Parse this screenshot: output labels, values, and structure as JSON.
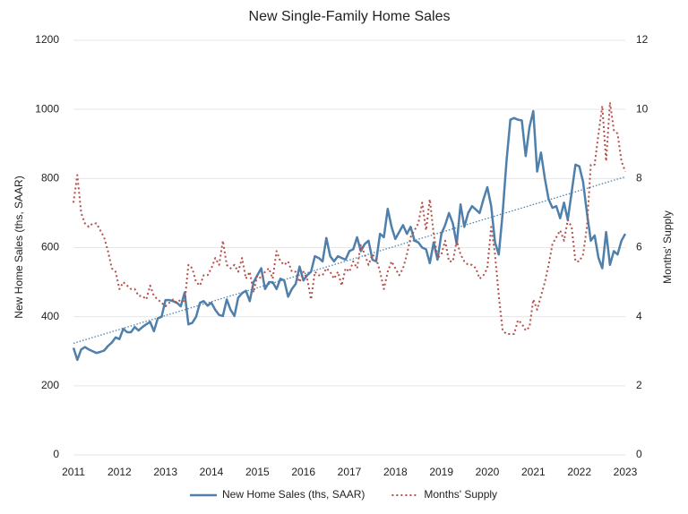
{
  "chart_data": {
    "type": "line",
    "title": "New Single-Family Home Sales",
    "y_label": "New Home Sales (ths, SAAR)",
    "y2_label": "Months' Supply",
    "categories": [
      "2011",
      null,
      null,
      null,
      null,
      null,
      null,
      null,
      null,
      null,
      null,
      null,
      "2012",
      null,
      null,
      null,
      null,
      null,
      null,
      null,
      null,
      null,
      null,
      null,
      "2013",
      null,
      null,
      null,
      null,
      null,
      null,
      null,
      null,
      null,
      null,
      null,
      "2014",
      null,
      null,
      null,
      null,
      null,
      null,
      null,
      null,
      null,
      null,
      null,
      "2015",
      null,
      null,
      null,
      null,
      null,
      null,
      null,
      null,
      null,
      null,
      null,
      "2016",
      null,
      null,
      null,
      null,
      null,
      null,
      null,
      null,
      null,
      null,
      null,
      "2017",
      null,
      null,
      null,
      null,
      null,
      null,
      null,
      null,
      null,
      null,
      null,
      "2018",
      null,
      null,
      null,
      null,
      null,
      null,
      null,
      null,
      null,
      null,
      null,
      "2019",
      null,
      null,
      null,
      null,
      null,
      null,
      null,
      null,
      null,
      null,
      null,
      "2020",
      null,
      null,
      null,
      null,
      null,
      null,
      null,
      null,
      null,
      null,
      null,
      "2021",
      null,
      null,
      null,
      null,
      null,
      null,
      null,
      null,
      null,
      null,
      null,
      "2022",
      null,
      null,
      null,
      null,
      null,
      null,
      null,
      null,
      null,
      null,
      null,
      "2023"
    ],
    "series": [
      {
        "name": "New Home Sales (ths, SAAR)",
        "color": "#4f7fab",
        "dash": "none",
        "width": 2.5,
        "values": [
          310,
          275,
          305,
          312,
          305,
          300,
          295,
          298,
          302,
          315,
          325,
          340,
          335,
          365,
          355,
          355,
          370,
          360,
          370,
          378,
          385,
          358,
          395,
          400,
          448,
          448,
          445,
          440,
          430,
          470,
          378,
          382,
          400,
          440,
          445,
          432,
          440,
          420,
          405,
          402,
          450,
          420,
          402,
          455,
          468,
          475,
          445,
          500,
          520,
          540,
          480,
          500,
          500,
          480,
          510,
          505,
          458,
          480,
          495,
          545,
          505,
          520,
          530,
          575,
          570,
          560,
          628,
          575,
          560,
          575,
          570,
          565,
          590,
          595,
          630,
          590,
          610,
          620,
          565,
          560,
          640,
          630,
          712,
          660,
          625,
          645,
          665,
          640,
          660,
          620,
          615,
          600,
          595,
          555,
          615,
          565,
          640,
          665,
          700,
          670,
          610,
          725,
          660,
          700,
          720,
          710,
          700,
          740,
          775,
          720,
          615,
          580,
          700,
          850,
          970,
          975,
          970,
          968,
          865,
          950,
          995,
          820,
          875,
          800,
          740,
          715,
          720,
          685,
          730,
          680,
          760,
          840,
          835,
          790,
          700,
          620,
          635,
          570,
          540,
          645,
          550,
          590,
          580,
          620,
          640
        ]
      },
      {
        "name": "Months' Supply",
        "color": "#b5504b",
        "dash": "2 3",
        "width": 2,
        "axis": "y2",
        "values": [
          7.3,
          8.1,
          7.0,
          6.7,
          6.6,
          6.7,
          6.7,
          6.5,
          6.3,
          5.9,
          5.4,
          5.3,
          4.8,
          5.0,
          4.9,
          4.8,
          4.8,
          4.6,
          4.6,
          4.5,
          4.9,
          4.6,
          4.5,
          4.4,
          4.3,
          4.4,
          4.5,
          4.4,
          4.5,
          4.4,
          5.5,
          5.4,
          5.0,
          4.9,
          5.2,
          5.2,
          5.4,
          5.7,
          5.5,
          6.2,
          5.5,
          5.4,
          5.5,
          5.3,
          5.7,
          5.1,
          5.3,
          4.7,
          5.2,
          5.1,
          5.3,
          5.4,
          5.1,
          5.9,
          5.6,
          5.5,
          5.6,
          5.3,
          5.3,
          5.0,
          5.3,
          5.1,
          4.5,
          5.3,
          5.2,
          5.2,
          5.4,
          5.3,
          5.1,
          5.3,
          4.9,
          5.4,
          5.3,
          5.6,
          5.4,
          6.1,
          5.8,
          5.5,
          5.8,
          5.7,
          5.3,
          4.8,
          5.3,
          5.6,
          5.4,
          5.2,
          5.4,
          5.8,
          6.3,
          6.5,
          6.7,
          7.3,
          6.5,
          7.4,
          6.4,
          5.7,
          5.8,
          6.2,
          5.6,
          5.6,
          6.2,
          5.8,
          5.6,
          5.5,
          5.5,
          5.4,
          5.1,
          5.2,
          5.4,
          6.6,
          5.8,
          4.6,
          3.6,
          3.5,
          3.5,
          3.5,
          3.9,
          3.8,
          3.6,
          3.7,
          4.5,
          4.2,
          4.6,
          5.0,
          5.5,
          6.1,
          6.3,
          6.5,
          6.2,
          6.8,
          6.6,
          5.6,
          5.6,
          5.8,
          6.6,
          8.4,
          8.4,
          9.3,
          10.1,
          8.5,
          10.2,
          9.4,
          9.3,
          8.5,
          8.2
        ]
      }
    ],
    "trendline": {
      "values": [
        323,
        805
      ],
      "color": "#4f7fab"
    },
    "ylim": [
      0,
      1200
    ],
    "yticks": [
      0,
      200,
      400,
      600,
      800,
      1000,
      1200
    ],
    "y2lim": [
      0,
      12
    ],
    "y2ticks": [
      0,
      2,
      4,
      6,
      8,
      10,
      12
    ],
    "grid": true,
    "legend": "bottom"
  }
}
